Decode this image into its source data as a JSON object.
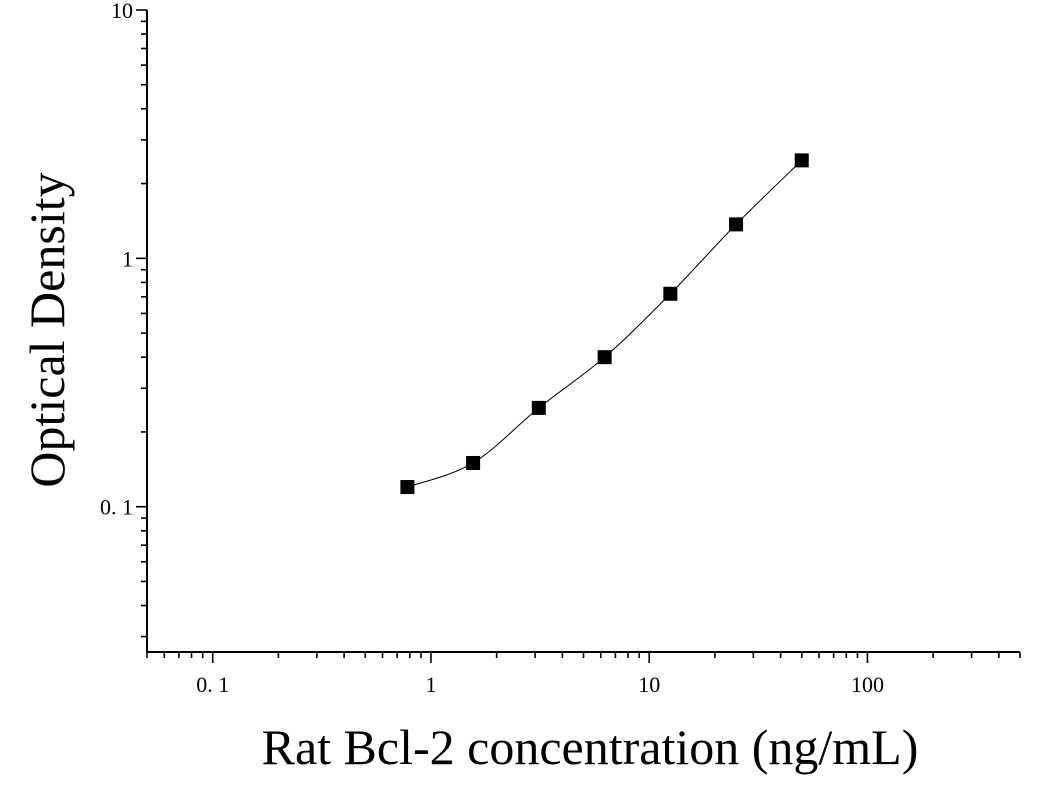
{
  "chart_data": {
    "type": "scatter",
    "title": "",
    "xlabel": "Rat Bcl-2 concentration (ng/mL)",
    "ylabel": "Optical Density",
    "x_scale": "log",
    "y_scale": "log",
    "xlim": [
      0.05,
      500
    ],
    "ylim": [
      0.026,
      10
    ],
    "x_tick_labels": [
      {
        "value": 0.1,
        "label": "0. 1"
      },
      {
        "value": 1,
        "label": "1"
      },
      {
        "value": 10,
        "label": "10"
      },
      {
        "value": 100,
        "label": "100"
      }
    ],
    "y_tick_labels": [
      {
        "value": 0.1,
        "label": "0. 1"
      },
      {
        "value": 1,
        "label": "1"
      },
      {
        "value": 10,
        "label": "10"
      }
    ],
    "grid": false,
    "legend": "none",
    "series": [
      {
        "marker": "square",
        "color": "#000000",
        "fit_line": true,
        "points": [
          {
            "x": 0.78,
            "y": 0.12
          },
          {
            "x": 1.56,
            "y": 0.15
          },
          {
            "x": 3.12,
            "y": 0.25
          },
          {
            "x": 6.25,
            "y": 0.4
          },
          {
            "x": 12.5,
            "y": 0.72
          },
          {
            "x": 25,
            "y": 1.37
          },
          {
            "x": 50,
            "y": 2.48
          }
        ]
      }
    ]
  }
}
